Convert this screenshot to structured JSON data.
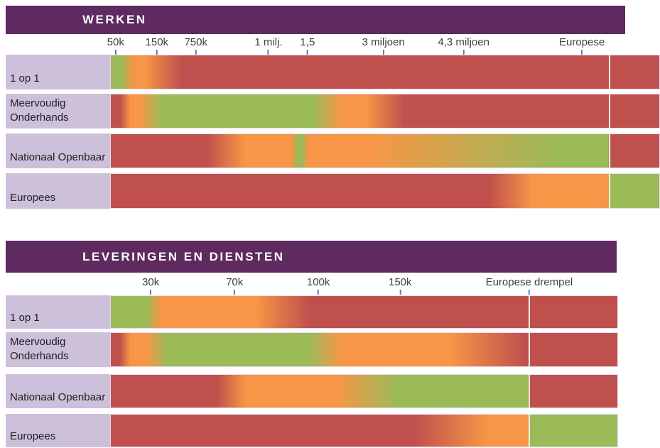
{
  "palette": {
    "red": "#C0504D",
    "orange": "#F79646",
    "green": "#9BBB59",
    "header_purple": "#5E2A60",
    "label_lavender": "#CCC0DA",
    "tick_blue": "#4F81BD",
    "axis_text": "#3F3F3F",
    "row_text": "#1F1F1F",
    "title_text": "#FFFFFF",
    "threshold_line": "#F2EDE3"
  },
  "chart_data": [
    {
      "type": "heatmap",
      "title": "WERKEN",
      "x_tick_labels": [
        "50k",
        "150k",
        "750k",
        "1 milj.",
        "1,5",
        "3 miljoen",
        "4,3 miljoen",
        "Europese"
      ],
      "x_tick_pos_pct": [
        1.0,
        8.5,
        15.6,
        28.8,
        35.9,
        49.7,
        64.3,
        85.8
      ],
      "threshold_line_pct": 90.8,
      "legend_position": "none",
      "rows": [
        {
          "label": "1 op 1",
          "gradient": [
            {
              "c": "green",
              "p": 0
            },
            {
              "c": "green",
              "p": 1.9
            },
            {
              "c": "orange",
              "p": 4.1
            },
            {
              "c": "orange",
              "p": 6.2
            },
            {
              "c": "red",
              "p": 12.9
            },
            {
              "c": "red",
              "p": 100
            }
          ]
        },
        {
          "label": "Meervoudig Onderhands",
          "gradient": [
            {
              "c": "red",
              "p": 0
            },
            {
              "c": "red",
              "p": 1.7
            },
            {
              "c": "orange",
              "p": 3.6
            },
            {
              "c": "orange",
              "p": 5.4
            },
            {
              "c": "green",
              "p": 9.3
            },
            {
              "c": "green",
              "p": 36.8
            },
            {
              "c": "orange",
              "p": 42.0
            },
            {
              "c": "orange",
              "p": 46.5
            },
            {
              "c": "red",
              "p": 53.6
            },
            {
              "c": "red",
              "p": 100
            }
          ]
        },
        {
          "label": "Nationaal Openbaar",
          "gradient": [
            {
              "c": "red",
              "p": 0
            },
            {
              "c": "red",
              "p": 17.4
            },
            {
              "c": "orange",
              "p": 24.5
            },
            {
              "c": "orange",
              "p": 32.9
            },
            {
              "c": "green",
              "p": 34.1
            },
            {
              "c": "green",
              "p": 34.9
            },
            {
              "c": "orange",
              "p": 36.0
            },
            {
              "c": "orange",
              "p": 47.2
            },
            {
              "c": "green",
              "p": 82.0
            },
            {
              "c": "green",
              "p": 90.5
            },
            {
              "c": "red",
              "p": 91.3
            },
            {
              "c": "red",
              "p": 100
            }
          ]
        },
        {
          "label": "Europees",
          "gradient": [
            {
              "c": "red",
              "p": 0
            },
            {
              "c": "red",
              "p": 69.1
            },
            {
              "c": "orange",
              "p": 76.9
            },
            {
              "c": "orange",
              "p": 90.4
            },
            {
              "c": "green",
              "p": 91.3
            },
            {
              "c": "green",
              "p": 100
            }
          ]
        }
      ]
    },
    {
      "type": "heatmap",
      "title": "LEVERINGEN EN DIENSTEN",
      "x_tick_labels": [
        "30k",
        "70k",
        "100k",
        "150k",
        "Europese drempel"
      ],
      "x_tick_pos_pct": [
        8.0,
        24.5,
        41.0,
        57.1,
        82.5
      ],
      "threshold_line_pct": 82.4,
      "legend_position": "none",
      "rows": [
        {
          "label": "1 op 1",
          "gradient": [
            {
              "c": "green",
              "p": 0
            },
            {
              "c": "green",
              "p": 7.0
            },
            {
              "c": "orange",
              "p": 9.8
            },
            {
              "c": "orange",
              "p": 28.7
            },
            {
              "c": "red",
              "p": 39.2
            },
            {
              "c": "red",
              "p": 100
            }
          ]
        },
        {
          "label": "Meervoudig Onderhands",
          "gradient": [
            {
              "c": "red",
              "p": 0
            },
            {
              "c": "red",
              "p": 1.8
            },
            {
              "c": "orange",
              "p": 3.9
            },
            {
              "c": "orange",
              "p": 7.0
            },
            {
              "c": "green",
              "p": 11.2
            },
            {
              "c": "green",
              "p": 39.2
            },
            {
              "c": "orange",
              "p": 45.5
            },
            {
              "c": "orange",
              "p": 66.9
            },
            {
              "c": "red",
              "p": 81.8
            },
            {
              "c": "red",
              "p": 100
            }
          ]
        },
        {
          "label": "Nationaal Openbaar",
          "gradient": [
            {
              "c": "red",
              "p": 0
            },
            {
              "c": "red",
              "p": 21.0
            },
            {
              "c": "orange",
              "p": 26.6
            },
            {
              "c": "orange",
              "p": 44.5
            },
            {
              "c": "green",
              "p": 56.6
            },
            {
              "c": "green",
              "p": 82.2
            },
            {
              "c": "red",
              "p": 82.9
            },
            {
              "c": "red",
              "p": 100
            }
          ]
        },
        {
          "label": "Europees",
          "gradient": [
            {
              "c": "red",
              "p": 0
            },
            {
              "c": "red",
              "p": 59.9
            },
            {
              "c": "orange",
              "p": 74.4
            },
            {
              "c": "orange",
              "p": 82.2
            },
            {
              "c": "green",
              "p": 82.9
            },
            {
              "c": "green",
              "p": 100
            }
          ]
        }
      ]
    }
  ]
}
